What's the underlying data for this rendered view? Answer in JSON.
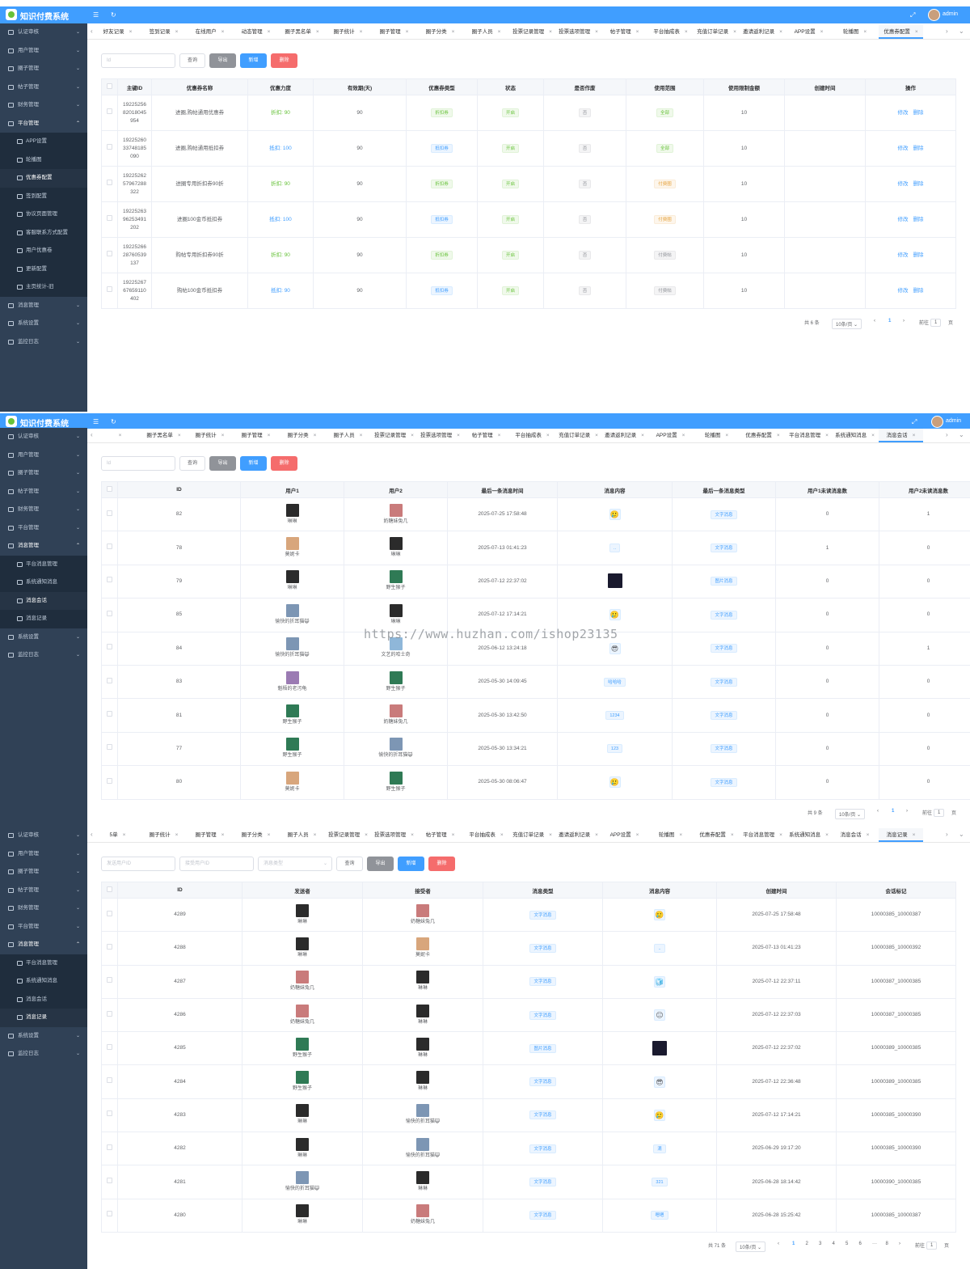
{
  "app": {
    "title": "知识付费系统",
    "user": "admin"
  },
  "filters": {
    "p1_id": "Id",
    "p2_id": "Id",
    "p3_sender": "发送用户ID",
    "p3_receiver": "接受用户ID",
    "p3_type": "消息类型"
  },
  "buttons": {
    "query": "查询",
    "export": "导出",
    "add": "新增",
    "delete": "删除",
    "edit": "修改",
    "del": "删除"
  },
  "sidebar1": [
    {
      "label": "认证审核",
      "arrow": "⌄"
    },
    {
      "label": "用户管理",
      "arrow": "⌄"
    },
    {
      "label": "圈子管理",
      "arrow": "⌄"
    },
    {
      "label": "帖子管理",
      "arrow": "⌄"
    },
    {
      "label": "财务管理",
      "arrow": "⌄"
    },
    {
      "label": "平台管理",
      "arrow": "⌃"
    },
    {
      "label": "APP设置",
      "arrow": ""
    },
    {
      "label": "轮播图",
      "arrow": ""
    },
    {
      "label": "优惠券配置",
      "arrow": ""
    },
    {
      "label": "签到配置",
      "arrow": ""
    },
    {
      "label": "协议页面管理",
      "arrow": ""
    },
    {
      "label": "客服联系方式配置",
      "arrow": ""
    },
    {
      "label": "用户优惠卷",
      "arrow": ""
    },
    {
      "label": "更新配置",
      "arrow": ""
    },
    {
      "label": "主页统计-旧",
      "arrow": ""
    },
    {
      "label": "消息管理",
      "arrow": "⌄"
    },
    {
      "label": "系统设置",
      "arrow": "⌄"
    },
    {
      "label": "监控日志",
      "arrow": "⌄"
    }
  ],
  "sidebar2": [
    {
      "label": "认证审核",
      "arrow": "⌄"
    },
    {
      "label": "用户管理",
      "arrow": "⌄"
    },
    {
      "label": "圈子管理",
      "arrow": "⌄"
    },
    {
      "label": "帖子管理",
      "arrow": "⌄"
    },
    {
      "label": "财务管理",
      "arrow": "⌄"
    },
    {
      "label": "平台管理",
      "arrow": "⌄"
    },
    {
      "label": "消息管理",
      "arrow": "⌃"
    },
    {
      "label": "平台消息管理",
      "arrow": ""
    },
    {
      "label": "系统通知消息",
      "arrow": ""
    },
    {
      "label": "消息会话",
      "arrow": ""
    },
    {
      "label": "消息记录",
      "arrow": ""
    },
    {
      "label": "系统设置",
      "arrow": "⌄"
    },
    {
      "label": "监控日志",
      "arrow": "⌄"
    }
  ],
  "sidebar3": [
    {
      "label": "认证审核",
      "arrow": "⌄"
    },
    {
      "label": "用户管理",
      "arrow": "⌄"
    },
    {
      "label": "圈子管理",
      "arrow": "⌄"
    },
    {
      "label": "帖子管理",
      "arrow": "⌄"
    },
    {
      "label": "财务管理",
      "arrow": "⌄"
    },
    {
      "label": "平台管理",
      "arrow": "⌄"
    },
    {
      "label": "消息管理",
      "arrow": "⌃"
    },
    {
      "label": "平台消息管理",
      "arrow": ""
    },
    {
      "label": "系统通知消息",
      "arrow": ""
    },
    {
      "label": "消息会话",
      "arrow": ""
    },
    {
      "label": "消息记录",
      "arrow": ""
    },
    {
      "label": "系统设置",
      "arrow": "⌄"
    },
    {
      "label": "监控日志",
      "arrow": "⌄"
    }
  ],
  "tabs1": [
    "好友记录",
    "签到记录",
    "在线用户",
    "动态管理",
    "圈子黑名单",
    "圈子统计",
    "圈子管理",
    "圈子分类",
    "圈子人员",
    "投票记录管理",
    "投票选项管理",
    "帖子管理",
    "平台抽成表",
    "充值订单记录",
    "邀请返利记录",
    "APP设置",
    "轮播图",
    "优惠券配置"
  ],
  "tabs2": [
    "",
    "圈子黑名单",
    "圈子统计",
    "圈子管理",
    "圈子分类",
    "圈子人员",
    "投票记录管理",
    "投票选项管理",
    "帖子管理",
    "平台抽成表",
    "充值订单记录",
    "邀请返利记录",
    "APP设置",
    "轮播图",
    "优惠券配置",
    "平台消息管理",
    "系统通知消息",
    "消息会话"
  ],
  "tabs3": [
    "5单",
    "圈子统计",
    "圈子管理",
    "圈子分类",
    "圈子人员",
    "投票记录管理",
    "投票选项管理",
    "帖子管理",
    "平台抽成表",
    "充值订单记录",
    "邀请返利记录",
    "APP设置",
    "轮播图",
    "优惠券配置",
    "平台消息管理",
    "系统通知消息",
    "消息会话",
    "消息记录"
  ],
  "coupon_table": {
    "headers": [
      "主键ID",
      "优惠券名称",
      "优惠力度",
      "有效期(天)",
      "优惠券类型",
      "状态",
      "是否作废",
      "使用范围",
      "使用限制金额",
      "创建时间",
      "操作"
    ],
    "rows": [
      {
        "id": "1922525682018045954",
        "name": "进圈,购帖通用优惠券",
        "power": "折扣: 90",
        "days": "90",
        "type": "折扣券",
        "status": "开启",
        "void": "否",
        "scope": "全部",
        "limit": "10"
      },
      {
        "id": "1922526033748185090",
        "name": "进圈,购帖通用抵扣券",
        "power": "抵扣: 100",
        "days": "90",
        "type": "抵扣券",
        "status": "开启",
        "void": "否",
        "scope": "全部",
        "limit": "10"
      },
      {
        "id": "1922526257967288322",
        "name": "进圈专用折扣券90折",
        "power": "折扣: 90",
        "days": "90",
        "type": "折扣券",
        "status": "开启",
        "void": "否",
        "scope": "付费圈",
        "limit": "10"
      },
      {
        "id": "1922526396253491202",
        "name": "进圈100金币抵扣券",
        "power": "抵扣: 100",
        "days": "90",
        "type": "抵扣券",
        "status": "开启",
        "void": "否",
        "scope": "付费圈",
        "limit": "10"
      },
      {
        "id": "1922526628760539137",
        "name": "购帖专用折扣券90折",
        "power": "折扣: 90",
        "days": "90",
        "type": "折扣券",
        "status": "开启",
        "void": "否",
        "scope": "付费帖",
        "limit": "10"
      },
      {
        "id": "1922526767659110402",
        "name": "购帖100金币抵扣券",
        "power": "抵扣: 90",
        "days": "90",
        "type": "抵扣券",
        "status": "开启",
        "void": "否",
        "scope": "付费帖",
        "limit": "10"
      }
    ]
  },
  "pager1": {
    "total": "共 6 条",
    "size": "10条/页 ⌄",
    "prev": "‹",
    "page": "1",
    "next": "›",
    "goto": "前往",
    "input": "1",
    "unit": "页"
  },
  "session_table": {
    "headers": [
      "ID",
      "用户1",
      "用户2",
      "最后一条消息时间",
      "消息内容",
      "最后一条消息类型",
      "用户1未读消息数",
      "用户2未读消息数"
    ],
    "rows": [
      {
        "id": "82",
        "u1": "琳琳",
        "u2": "奶糖妹兔几",
        "time": "2025-07-25 17:58:48",
        "content": "🥲",
        "ctype": "emoji",
        "type": "文字消息",
        "n1": "0",
        "n2": "1"
      },
      {
        "id": "78",
        "u1": "莫妮卡",
        "u2": "琳琳",
        "time": "2025-07-13 01:41:23",
        "content": "..",
        "ctype": "tag",
        "type": "文字消息",
        "n1": "1",
        "n2": "0"
      },
      {
        "id": "79",
        "u1": "琳琳",
        "u2": "野生猴子",
        "time": "2025-07-12 22:37:02",
        "content": "",
        "ctype": "image",
        "type": "图片消息",
        "n1": "0",
        "n2": "0"
      },
      {
        "id": "85",
        "u1": "愉快的折耳猫😺",
        "u2": "琳琳",
        "time": "2025-07-12 17:14:21",
        "content": "🥲",
        "ctype": "emoji",
        "type": "文字消息",
        "n1": "0",
        "n2": "0"
      },
      {
        "id": "84",
        "u1": "愉快的折耳猫😺",
        "u2": "文艺的哈士奇",
        "time": "2025-06-12 13:24:18",
        "content": "😎",
        "ctype": "emoji",
        "type": "文字消息",
        "n1": "0",
        "n2": "1"
      },
      {
        "id": "83",
        "u1": "魁梧的老污龟",
        "u2": "野生猴子",
        "time": "2025-05-30 14:09:45",
        "content": "哈哈哈",
        "ctype": "tag",
        "type": "文字消息",
        "n1": "0",
        "n2": "0"
      },
      {
        "id": "81",
        "u1": "野生猴子",
        "u2": "奶糖妹兔几",
        "time": "2025-05-30 13:42:50",
        "content": "1234",
        "ctype": "tag",
        "type": "文字消息",
        "n1": "0",
        "n2": "0"
      },
      {
        "id": "77",
        "u1": "野生猴子",
        "u2": "愉快的折耳猫😺",
        "time": "2025-05-30 13:34:21",
        "content": "123",
        "ctype": "tag",
        "type": "文字消息",
        "n1": "0",
        "n2": "0"
      },
      {
        "id": "80",
        "u1": "莫妮卡",
        "u2": "野生猴子",
        "time": "2025-05-30 08:06:47",
        "content": "🥲",
        "ctype": "emoji",
        "type": "文字消息",
        "n1": "0",
        "n2": "0"
      }
    ]
  },
  "pager2": {
    "total": "共 9 条",
    "size": "10条/页 ⌄",
    "prev": "‹",
    "page": "1",
    "next": "›",
    "goto": "前往",
    "input": "1",
    "unit": "页"
  },
  "record_table": {
    "headers": [
      "ID",
      "发送者",
      "接受者",
      "消息类型",
      "消息内容",
      "创建时间",
      "会话标记"
    ],
    "rows": [
      {
        "id": "4289",
        "s": "琳琳",
        "r": "奶糖妹兔几",
        "type": "文字消息",
        "content": "🥲",
        "ctype": "emoji",
        "time": "2025-07-25 17:58:48",
        "mark": "10000385_10000387"
      },
      {
        "id": "4288",
        "s": "琳琳",
        "r": "莫妮卡",
        "type": "文字消息",
        "content": "..",
        "ctype": "tag",
        "time": "2025-07-13 01:41:23",
        "mark": "10000385_10000392"
      },
      {
        "id": "4287",
        "s": "奶糖妹兔几",
        "r": "琳琳",
        "type": "文字消息",
        "content": "🧊",
        "ctype": "emoji",
        "time": "2025-07-12 22:37:11",
        "mark": "10000387_10000385"
      },
      {
        "id": "4286",
        "s": "奶糖妹兔几",
        "r": "琳琳",
        "type": "文字消息",
        "content": "😑",
        "ctype": "emoji",
        "time": "2025-07-12 22:37:03",
        "mark": "10000387_10000385"
      },
      {
        "id": "4285",
        "s": "野生猴子",
        "r": "琳琳",
        "type": "图片消息",
        "content": "",
        "ctype": "image",
        "time": "2025-07-12 22:37:02",
        "mark": "10000389_10000385"
      },
      {
        "id": "4284",
        "s": "野生猴子",
        "r": "琳琳",
        "type": "文字消息",
        "content": "😎",
        "ctype": "emoji",
        "time": "2025-07-12 22:36:48",
        "mark": "10000389_10000385"
      },
      {
        "id": "4283",
        "s": "琳琳",
        "r": "愉快的折耳猫😺",
        "type": "文字消息",
        "content": "🥲",
        "ctype": "emoji",
        "time": "2025-07-12 17:14:21",
        "mark": "10000385_10000390"
      },
      {
        "id": "4282",
        "s": "琳琳",
        "r": "愉快的折耳猫😺",
        "type": "文字消息",
        "content": "滴",
        "ctype": "tag",
        "time": "2025-06-29 19:17:20",
        "mark": "10000385_10000390"
      },
      {
        "id": "4281",
        "s": "愉快的折耳猫😺",
        "r": "琳琳",
        "type": "文字消息",
        "content": "321",
        "ctype": "tag",
        "time": "2025-06-28 18:14:42",
        "mark": "10000390_10000385"
      },
      {
        "id": "4280",
        "s": "琳琳",
        "r": "奶糖妹兔几",
        "type": "文字消息",
        "content": "嗯嗯",
        "ctype": "tag",
        "time": "2025-06-28 15:25:42",
        "mark": "10000385_10000387"
      }
    ]
  },
  "pager3": {
    "total": "共 71 条",
    "size": "10条/页 ⌄",
    "prev": "‹",
    "pages": [
      "1",
      "2",
      "3",
      "4",
      "5",
      "6",
      "···",
      "8"
    ],
    "next": "›",
    "goto": "前往",
    "input": "1",
    "unit": "页"
  },
  "watermark": "https://www.huzhan.com/ishop23135",
  "colors": {
    "header": "#409eff",
    "sidebar": "#304156",
    "submenu": "#1f2d3d"
  },
  "avatars": {
    "琳琳": "#2b2b2b",
    "奶糖妹兔几": "#c97b7b",
    "莫妮卡": "#d8a67c",
    "野生猴子": "#2f7a55",
    "愉快的折耳猫😺": "#7d96b4",
    "文艺的哈士奇": "#8fb7d9",
    "魁梧的老污龟": "#9b7bb3"
  }
}
